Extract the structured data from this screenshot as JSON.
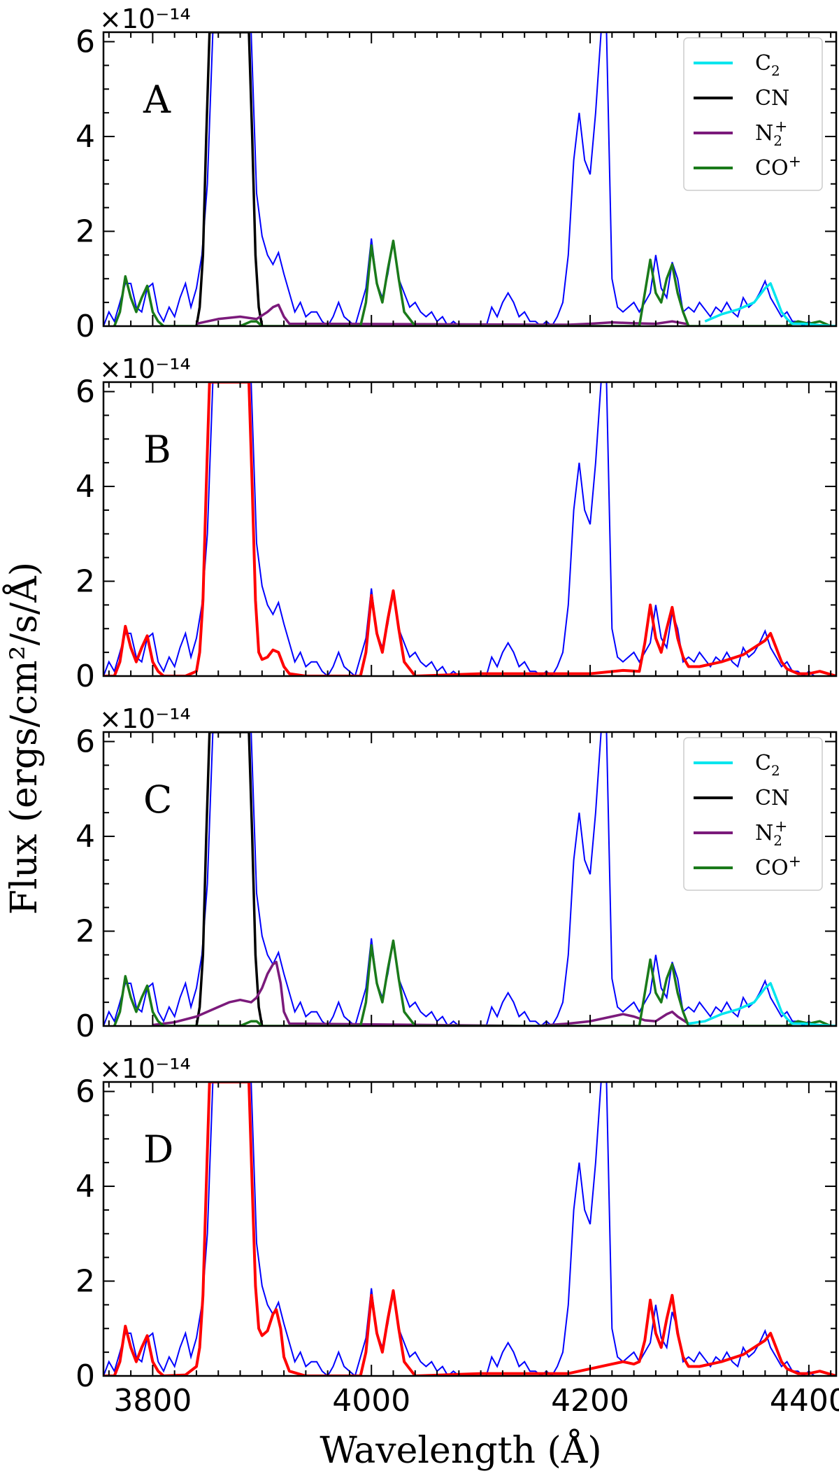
{
  "chart_data": {
    "type": "line",
    "xlabel": "Wavelength (Å)",
    "ylabel": "Flux (ergs/cm²/s/Å)",
    "xlim": [
      3755,
      4425
    ],
    "ylim": [
      0,
      6.2
    ],
    "y_scale_label": "×10⁻¹⁴",
    "x_ticks": [
      3800,
      4000,
      4200,
      4400
    ],
    "x_tick_labels": [
      "3800",
      "4000",
      "4200",
      "4400"
    ],
    "y_ticks": [
      0,
      2,
      4,
      6
    ],
    "y_tick_labels": [
      "0",
      "2",
      "4",
      "6"
    ],
    "colors": {
      "observed": "#0000ff",
      "C2": "#00e5ee",
      "CN": "#000000",
      "N2+": "#7b1a7b",
      "CO+": "#1a7a1a",
      "total_model": "#ff0000"
    },
    "legend": [
      {
        "key": "C2",
        "base": "C",
        "sub": "2",
        "sup": ""
      },
      {
        "key": "CN",
        "base": "CN",
        "sub": "",
        "sup": ""
      },
      {
        "key": "N2+",
        "base": "N",
        "sub": "2",
        "sup": "+"
      },
      {
        "key": "CO+",
        "base": "CO",
        "sub": "",
        "sup": "+"
      }
    ],
    "legend_placement": "top-right",
    "observed": {
      "x": [
        3755,
        3760,
        3765,
        3770,
        3775,
        3780,
        3785,
        3790,
        3795,
        3800,
        3805,
        3810,
        3815,
        3820,
        3825,
        3830,
        3835,
        3840,
        3845,
        3850,
        3855,
        3860,
        3865,
        3870,
        3875,
        3880,
        3885,
        3890,
        3895,
        3900,
        3905,
        3910,
        3915,
        3920,
        3925,
        3930,
        3935,
        3940,
        3945,
        3950,
        3955,
        3960,
        3965,
        3970,
        3975,
        3980,
        3985,
        3990,
        3995,
        4000,
        4005,
        4010,
        4015,
        4020,
        4025,
        4030,
        4035,
        4040,
        4045,
        4050,
        4055,
        4060,
        4065,
        4070,
        4075,
        4080,
        4085,
        4090,
        4095,
        4100,
        4105,
        4110,
        4115,
        4120,
        4125,
        4130,
        4135,
        4140,
        4145,
        4150,
        4155,
        4160,
        4165,
        4170,
        4175,
        4180,
        4185,
        4190,
        4195,
        4200,
        4205,
        4210,
        4212,
        4215,
        4220,
        4225,
        4230,
        4235,
        4240,
        4245,
        4250,
        4255,
        4260,
        4265,
        4270,
        4275,
        4280,
        4285,
        4290,
        4295,
        4300,
        4305,
        4310,
        4315,
        4320,
        4325,
        4330,
        4335,
        4340,
        4345,
        4350,
        4355,
        4360,
        4365,
        4370,
        4375,
        4380,
        4385,
        4390,
        4395,
        4400,
        4405,
        4410,
        4415,
        4420,
        4425
      ],
      "y": [
        0,
        0.3,
        0.1,
        0.5,
        0.9,
        0.9,
        0.4,
        0.3,
        0.8,
        0.9,
        0.3,
        0.1,
        0.4,
        0.2,
        0.6,
        0.9,
        0.4,
        0.8,
        1.5,
        3.0,
        6.2,
        6.2,
        6.2,
        6.2,
        6.2,
        6.2,
        6.2,
        6.2,
        2.8,
        1.9,
        1.5,
        1.3,
        1.55,
        1.1,
        0.7,
        0.3,
        0.5,
        0.2,
        0.3,
        0.3,
        0.1,
        0.0,
        0.2,
        0.5,
        0.2,
        0.1,
        0.0,
        0.4,
        0.8,
        1.85,
        0.9,
        0.6,
        1.1,
        1.8,
        1.0,
        0.7,
        0.4,
        0.5,
        0.3,
        0.2,
        0.3,
        0.1,
        0.2,
        0.0,
        0.1,
        0.0,
        0.0,
        0.0,
        0.0,
        0.0,
        0.0,
        0.4,
        0.2,
        0.5,
        0.7,
        0.5,
        0.2,
        0.3,
        0.1,
        0.1,
        0.0,
        0.1,
        0.0,
        0.2,
        0.5,
        1.5,
        3.5,
        4.5,
        3.5,
        3.2,
        4.5,
        6.2,
        6.2,
        6.2,
        1.0,
        0.4,
        0.3,
        0.4,
        0.5,
        0.3,
        0.5,
        0.7,
        1.5,
        0.8,
        0.6,
        1.35,
        1.0,
        0.3,
        0.4,
        0.3,
        0.5,
        0.35,
        0.2,
        0.4,
        0.3,
        0.5,
        0.3,
        0.2,
        0.6,
        0.4,
        0.5,
        0.7,
        0.95,
        0.6,
        0.4,
        0.2,
        0.3,
        0.1,
        0.1,
        0.0,
        0.1,
        0.0,
        0.0,
        0.0,
        0.0,
        0.0
      ]
    },
    "panels": [
      {
        "label": "A",
        "show_legend": true,
        "series": [
          {
            "key": "CN",
            "x": [
              3840,
              3843,
              3846,
              3849,
              3852,
              3855,
              3885,
              3888,
              3891,
              3894,
              3897,
              3900
            ],
            "y": [
              0,
              0.4,
              1.5,
              4.0,
              6.2,
              6.2,
              6.2,
              6.2,
              4.0,
              1.5,
              0.4,
              0
            ]
          },
          {
            "key": "N2+",
            "x": [
              3840,
              3860,
              3880,
              3895,
              3905,
              3910,
              3915,
              3920,
              3925,
              4180,
              4200,
              4220,
              4240,
              4260,
              4275,
              4290
            ],
            "y": [
              0.05,
              0.15,
              0.2,
              0.15,
              0.3,
              0.4,
              0.45,
              0.2,
              0.05,
              0.03,
              0.05,
              0.08,
              0.06,
              0.05,
              0.1,
              0.04
            ]
          },
          {
            "key": "CO+",
            "x": [
              3765,
              3770,
              3775,
              3780,
              3785,
              3790,
              3795,
              3800,
              3805,
              3810,
              3880,
              3890,
              3895,
              3900,
              3990,
              3995,
              4000,
              4005,
              4010,
              4015,
              4020,
              4025,
              4030,
              4040,
              4245,
              4250,
              4255,
              4260,
              4265,
              4270,
              4275,
              4280,
              4285,
              4290,
              4300,
              4380,
              4390,
              4400,
              4410,
              4420
            ],
            "y": [
              0,
              0.3,
              1.05,
              0.6,
              0.3,
              0.6,
              0.85,
              0.3,
              0.1,
              0,
              0,
              0.1,
              0.1,
              0,
              0,
              0.5,
              1.7,
              0.9,
              0.5,
              1.2,
              1.8,
              1.0,
              0.3,
              0,
              0,
              0.7,
              1.4,
              0.7,
              0.5,
              1.0,
              1.3,
              0.7,
              0.3,
              0,
              0,
              0,
              0.1,
              0.05,
              0.1,
              0
            ]
          },
          {
            "key": "C2",
            "x": [
              4305,
              4320,
              4335,
              4350,
              4360,
              4365,
              4370,
              4375,
              4380,
              4385,
              4395,
              4410,
              4425
            ],
            "y": [
              0.1,
              0.25,
              0.35,
              0.5,
              0.8,
              0.9,
              0.6,
              0.3,
              0.15,
              0.05,
              0.05,
              0.02,
              0
            ]
          }
        ]
      },
      {
        "label": "B",
        "show_legend": false,
        "series": [
          {
            "key": "total_model",
            "x": [
              3755,
              3765,
              3770,
              3775,
              3780,
              3785,
              3790,
              3795,
              3800,
              3805,
              3810,
              3830,
              3840,
              3843,
              3846,
              3849,
              3852,
              3855,
              3885,
              3888,
              3891,
              3894,
              3897,
              3900,
              3905,
              3910,
              3915,
              3920,
              3925,
              3940,
              3990,
              3995,
              4000,
              4005,
              4010,
              4015,
              4020,
              4025,
              4030,
              4040,
              4100,
              4200,
              4230,
              4245,
              4250,
              4255,
              4260,
              4265,
              4270,
              4275,
              4280,
              4285,
              4290,
              4300,
              4320,
              4340,
              4360,
              4365,
              4370,
              4375,
              4380,
              4390,
              4400,
              4410,
              4425
            ],
            "y": [
              0,
              0,
              0.3,
              1.05,
              0.6,
              0.3,
              0.6,
              0.85,
              0.3,
              0.1,
              0,
              0,
              0.1,
              0.5,
              1.6,
              4.0,
              6.2,
              6.2,
              6.2,
              6.2,
              4.0,
              1.6,
              0.5,
              0.35,
              0.4,
              0.55,
              0.5,
              0.2,
              0.05,
              0,
              0,
              0.5,
              1.7,
              0.9,
              0.5,
              1.2,
              1.8,
              1.0,
              0.3,
              0,
              0.05,
              0.05,
              0.12,
              0.1,
              0.7,
              1.5,
              0.8,
              0.5,
              1.0,
              1.45,
              0.8,
              0.4,
              0.2,
              0.2,
              0.3,
              0.45,
              0.75,
              0.9,
              0.6,
              0.3,
              0.15,
              0.05,
              0.05,
              0.1,
              0
            ]
          }
        ]
      },
      {
        "label": "C",
        "show_legend": true,
        "series": [
          {
            "key": "CN",
            "x": [
              3840,
              3843,
              3846,
              3849,
              3852,
              3855,
              3885,
              3888,
              3891,
              3894,
              3897,
              3900
            ],
            "y": [
              0,
              0.4,
              1.5,
              4.0,
              6.2,
              6.2,
              6.2,
              6.2,
              4.0,
              1.5,
              0.4,
              0
            ]
          },
          {
            "key": "N2+",
            "x": [
              3800,
              3820,
              3840,
              3860,
              3870,
              3880,
              3890,
              3895,
              3900,
              3905,
              3910,
              3913,
              3917,
              3920,
              3925,
              4150,
              4180,
              4200,
              4220,
              4230,
              4240,
              4250,
              4260,
              4270,
              4275,
              4280,
              4290
            ],
            "y": [
              0.02,
              0.08,
              0.2,
              0.4,
              0.5,
              0.55,
              0.5,
              0.6,
              0.8,
              1.1,
              1.3,
              1.35,
              0.9,
              0.3,
              0.05,
              0,
              0.05,
              0.1,
              0.2,
              0.25,
              0.2,
              0.12,
              0.1,
              0.25,
              0.3,
              0.2,
              0.05
            ]
          },
          {
            "key": "CO+",
            "x": [
              3765,
              3770,
              3775,
              3780,
              3785,
              3790,
              3795,
              3800,
              3805,
              3810,
              3880,
              3890,
              3895,
              3900,
              3990,
              3995,
              4000,
              4005,
              4010,
              4015,
              4020,
              4025,
              4030,
              4040,
              4245,
              4250,
              4255,
              4260,
              4265,
              4270,
              4275,
              4280,
              4285,
              4290,
              4300,
              4380,
              4390,
              4400,
              4410,
              4420
            ],
            "y": [
              0,
              0.3,
              1.05,
              0.6,
              0.3,
              0.6,
              0.85,
              0.3,
              0.1,
              0,
              0,
              0.1,
              0.1,
              0,
              0,
              0.5,
              1.7,
              0.9,
              0.5,
              1.2,
              1.8,
              1.0,
              0.3,
              0,
              0,
              0.7,
              1.4,
              0.7,
              0.5,
              1.0,
              1.3,
              0.7,
              0.3,
              0,
              0,
              0,
              0.1,
              0.05,
              0.1,
              0
            ]
          },
          {
            "key": "C2",
            "x": [
              4290,
              4305,
              4320,
              4335,
              4350,
              4360,
              4365,
              4370,
              4375,
              4380,
              4385,
              4395,
              4410,
              4425
            ],
            "y": [
              0.05,
              0.1,
              0.25,
              0.35,
              0.5,
              0.8,
              0.9,
              0.6,
              0.3,
              0.15,
              0.05,
              0.05,
              0.02,
              0
            ]
          }
        ]
      },
      {
        "label": "D",
        "show_legend": false,
        "series": [
          {
            "key": "total_model",
            "x": [
              3755,
              3765,
              3770,
              3775,
              3780,
              3785,
              3790,
              3795,
              3800,
              3805,
              3810,
              3830,
              3840,
              3843,
              3846,
              3849,
              3852,
              3855,
              3885,
              3888,
              3891,
              3894,
              3897,
              3900,
              3905,
              3910,
              3913,
              3917,
              3920,
              3925,
              3940,
              3990,
              3995,
              4000,
              4005,
              4010,
              4015,
              4020,
              4025,
              4030,
              4040,
              4100,
              4180,
              4200,
              4220,
              4230,
              4240,
              4245,
              4250,
              4255,
              4260,
              4265,
              4270,
              4275,
              4280,
              4285,
              4290,
              4300,
              4320,
              4340,
              4360,
              4365,
              4370,
              4375,
              4380,
              4390,
              4400,
              4410,
              4425
            ],
            "y": [
              0,
              0,
              0.3,
              1.05,
              0.6,
              0.3,
              0.6,
              0.85,
              0.3,
              0.1,
              0,
              0.02,
              0.2,
              0.6,
              1.7,
              4.0,
              6.2,
              6.2,
              6.2,
              6.2,
              4.0,
              1.9,
              1.0,
              0.85,
              0.95,
              1.3,
              1.4,
              1.0,
              0.4,
              0.1,
              0,
              0,
              0.5,
              1.7,
              0.9,
              0.5,
              1.2,
              1.8,
              1.0,
              0.3,
              0,
              0.05,
              0.05,
              0.15,
              0.25,
              0.3,
              0.25,
              0.3,
              0.75,
              1.6,
              0.9,
              0.6,
              1.2,
              1.7,
              0.9,
              0.4,
              0.2,
              0.2,
              0.3,
              0.45,
              0.75,
              0.9,
              0.6,
              0.3,
              0.15,
              0.05,
              0.05,
              0.1,
              0
            ]
          }
        ]
      }
    ]
  }
}
